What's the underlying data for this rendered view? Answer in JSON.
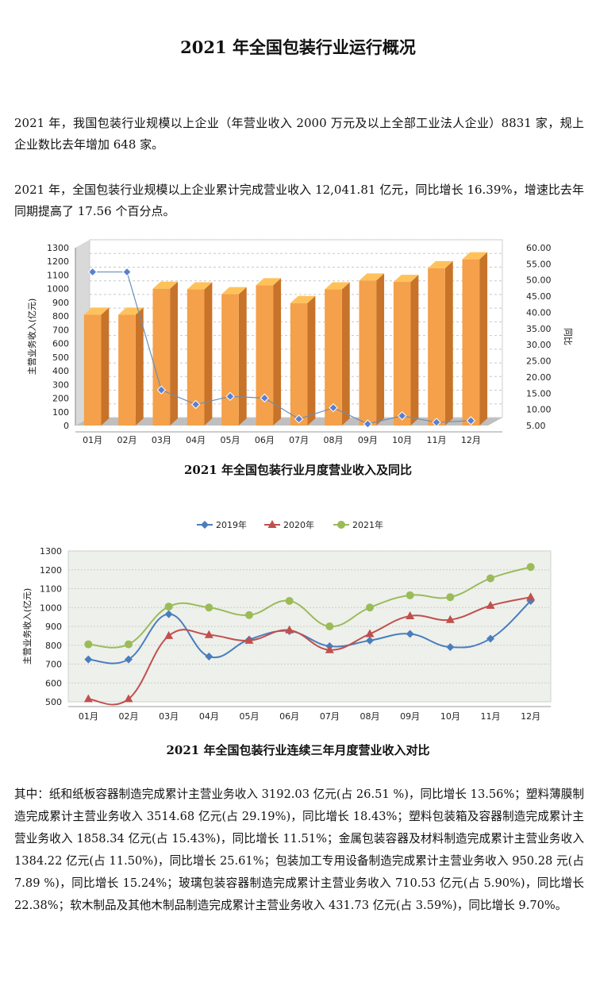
{
  "page": {
    "title": "2021 年全国包装行业运行概况",
    "paragraph1": "2021 年，我国包装行业规模以上企业（年营业收入 2000 万元及以上全部工业法人企业）8831 家，规上企业数比去年增加 648 家。",
    "paragraph2": "2021 年，全国包装行业规模以上企业累计完成营业收入 12,041.81 亿元，同比增长 16.39%，增速比去年同期提高了 17.56 个百分点。",
    "paragraph3": "其中：纸和纸板容器制造完成累计主营业务收入 3192.03 亿元(占 26.51 %)，同比增长 13.56%；塑料薄膜制造完成累计主营业务收入 3514.68 亿元(占 29.19%)，同比增长 18.43%；塑料包装箱及容器制造完成累计主营业务收入 1858.34 亿元(占 15.43%)，同比增长 11.51%；金属包装容器及材料制造完成累计主营业务收入 1384.22 亿元(占 11.50%)，同比增长 25.61%；包装加工专用设备制造完成累计主营业务收入 950.28 元(占 7.89 %)，同比增长 15.24%；玻璃包装容器制造完成累计主营业务收入 710.53 亿元(占 5.90%)，同比增长 22.38%；软木制品及其他木制品制造完成累计主营业务收入 431.73 亿元(占 3.59%)，同比增长 9.70%。",
    "caption1": "2021 年全国包装行业月度营业收入及同比",
    "caption2": "2021 年全国包装行业连续三年月度营业收入对比"
  },
  "chart_data": [
    {
      "type": "bar",
      "categories": [
        "01月",
        "02月",
        "03月",
        "04月",
        "05月",
        "06月",
        "07月",
        "08月",
        "09月",
        "10月",
        "11月",
        "12月"
      ],
      "series": [
        {
          "values": [
            810,
            810,
            1000,
            995,
            960,
            1025,
            895,
            995,
            1060,
            1050,
            1150,
            1215
          ]
        },
        {
          "type": "line",
          "axis": "right",
          "values": [
            52.5,
            52.5,
            16.0,
            11.5,
            14.0,
            13.5,
            7.0,
            10.5,
            5.5,
            8.0,
            6.0,
            6.5
          ]
        }
      ],
      "ylabel": "主营业务收入(亿元)",
      "y2label": "同比",
      "ylim": [
        0,
        1300
      ],
      "yticks": [
        "0",
        "100",
        "200",
        "300",
        "400",
        "500",
        "600",
        "700",
        "800",
        "900",
        "1000",
        "1100",
        "1200",
        "1300"
      ],
      "y2lim": [
        5,
        60
      ],
      "y2ticks": [
        "5.00",
        "10.00",
        "15.00",
        "20.00",
        "25.00",
        "30.00",
        "35.00",
        "40.00",
        "45.00",
        "50.00",
        "55.00",
        "60.00"
      ],
      "colors": {
        "bar": "#f5a04a",
        "bar_side": "#c8732a",
        "bar_top": "#ffc25a",
        "line": "#6a8fb6",
        "marker": "#5b7fd0"
      },
      "grid": true
    },
    {
      "type": "line",
      "categories": [
        "01月",
        "02月",
        "03月",
        "04月",
        "05月",
        "06月",
        "07月",
        "08月",
        "09月",
        "10月",
        "11月",
        "12月"
      ],
      "series": [
        {
          "name": "2019年",
          "color": "#4a7ebb",
          "marker": "diamond",
          "values": [
            725,
            725,
            965,
            740,
            830,
            875,
            795,
            825,
            860,
            790,
            835,
            1035
          ]
        },
        {
          "name": "2020年",
          "color": "#c0504d",
          "marker": "triangle",
          "values": [
            515,
            515,
            850,
            855,
            825,
            880,
            775,
            860,
            955,
            935,
            1010,
            1055
          ]
        },
        {
          "name": "2021年",
          "color": "#9bbb59",
          "marker": "circle",
          "values": [
            805,
            805,
            1005,
            1000,
            960,
            1035,
            900,
            1000,
            1065,
            1055,
            1155,
            1215
          ]
        }
      ],
      "ylabel": "主营业务收入(亿元)",
      "ylim": [
        500,
        1300
      ],
      "yticks": [
        "500",
        "600",
        "700",
        "800",
        "900",
        "1000",
        "1100",
        "1200",
        "1300"
      ],
      "legend": "top",
      "grid": true
    }
  ]
}
